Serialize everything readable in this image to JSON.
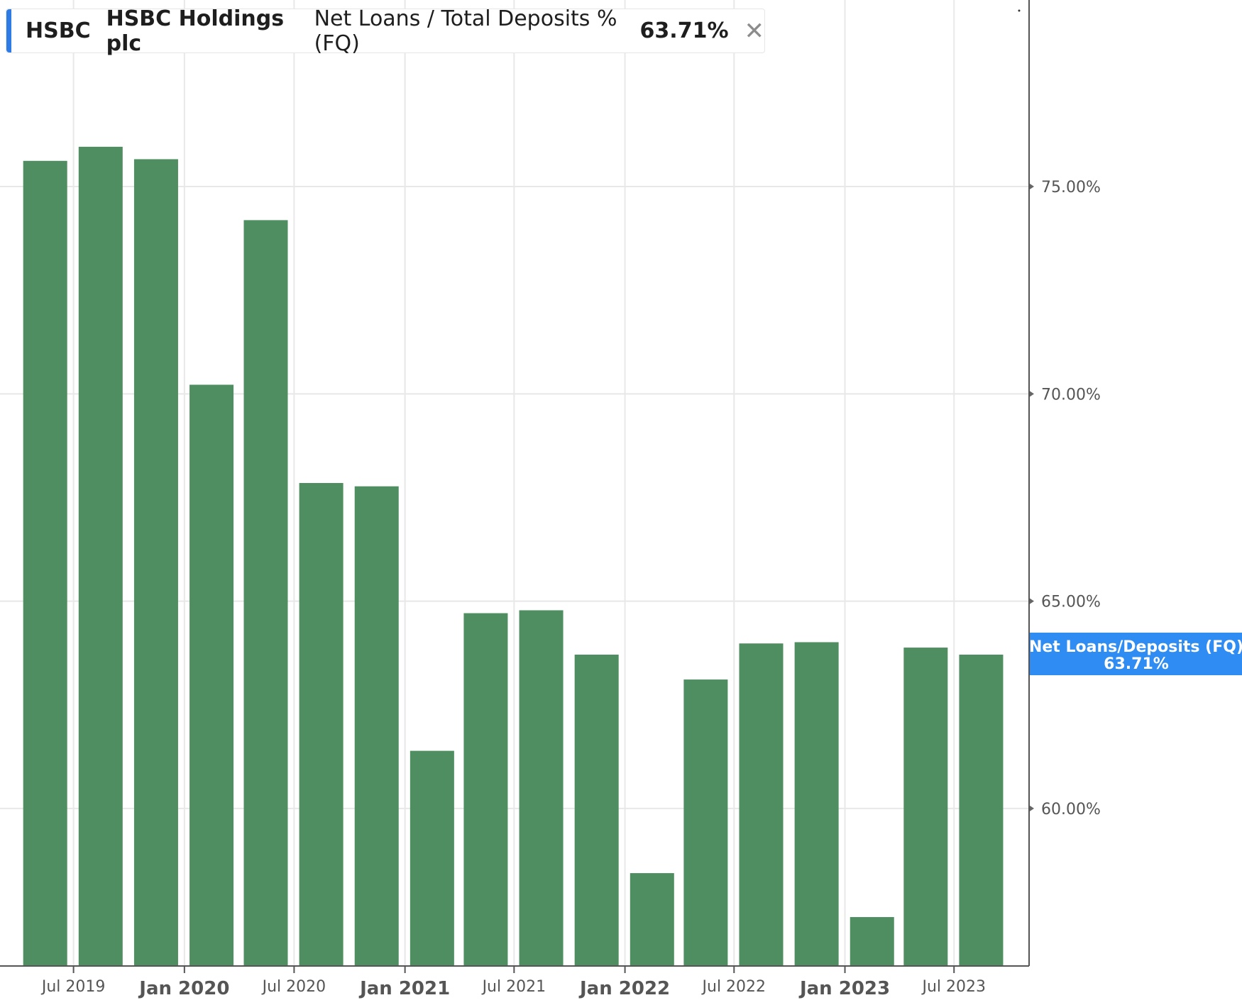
{
  "header": {
    "ticker": "HSBC",
    "company": "HSBC Holdings plc",
    "metric": "Net Loans / Total Deposits % (FQ)",
    "value": "63.71%",
    "close_icon": "close-icon",
    "accent_color": "#2e7be6"
  },
  "price_tag": {
    "label": "Net Loans/Deposits (FQ)",
    "value": "63.71%",
    "color": "#2e8cf2"
  },
  "chart_data": {
    "type": "bar",
    "bar_color": "#4f8e60",
    "categories": [
      "Q2 2019",
      "Q3 2019",
      "Q4 2019",
      "Q1 2020",
      "Q2 2020",
      "Q3 2020",
      "Q4 2020",
      "Q1 2021",
      "Q2 2021",
      "Q3 2021",
      "Q4 2021",
      "Q1 2022",
      "Q2 2022",
      "Q3 2022",
      "Q4 2022",
      "Q1 2023",
      "Q2 2023",
      "Q3 2023"
    ],
    "x": [
      "2019-05-15",
      "2019-08-15",
      "2019-11-15",
      "2020-02-15",
      "2020-05-15",
      "2020-08-15",
      "2020-11-15",
      "2021-02-15",
      "2021-05-15",
      "2021-08-15",
      "2021-11-15",
      "2022-02-15",
      "2022-05-15",
      "2022-08-15",
      "2022-11-15",
      "2023-02-15",
      "2023-05-15",
      "2023-08-15"
    ],
    "values": [
      75.62,
      75.96,
      75.66,
      70.22,
      74.19,
      67.85,
      67.77,
      61.39,
      64.71,
      64.78,
      63.71,
      58.44,
      63.11,
      63.98,
      64.01,
      57.38,
      63.88,
      63.71
    ],
    "ylim": [
      56.2,
      79.5
    ],
    "yticks": [
      {
        "value": 60,
        "label": "60.00%"
      },
      {
        "value": 65,
        "label": "65.00%"
      },
      {
        "value": 70,
        "label": "70.00%"
      },
      {
        "value": 75,
        "label": "75.00%"
      }
    ],
    "xticks": [
      {
        "date": "2019-07-01",
        "label": "Jul 2019",
        "major": false
      },
      {
        "date": "2020-01-01",
        "label": "Jan 2020",
        "major": true
      },
      {
        "date": "2020-07-01",
        "label": "Jul 2020",
        "major": false
      },
      {
        "date": "2021-01-01",
        "label": "Jan 2021",
        "major": true
      },
      {
        "date": "2021-07-01",
        "label": "Jul 2021",
        "major": false
      },
      {
        "date": "2022-01-01",
        "label": "Jan 2022",
        "major": true
      },
      {
        "date": "2022-07-01",
        "label": "Jul 2022",
        "major": false
      },
      {
        "date": "2023-01-01",
        "label": "Jan 2023",
        "major": true
      },
      {
        "date": "2023-07-01",
        "label": "Jul 2023",
        "major": false
      }
    ],
    "grid": true,
    "xlabel": "",
    "ylabel": ""
  }
}
